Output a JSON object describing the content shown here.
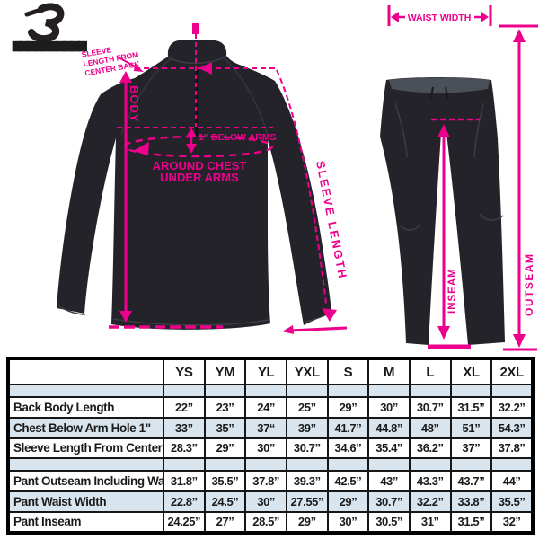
{
  "colors": {
    "accent": "#EC008C",
    "garment": "#24232A",
    "table_shaded": "#D8E5EE"
  },
  "logo": {
    "wordmark": "▆▆▆▆▆▆▆▆▆▆"
  },
  "diagram": {
    "jacket": {
      "note_line1": "SLEEVE",
      "note_line2": "LENGTH FROM",
      "note_line3": "CENTER BACK",
      "body_label": "BODY",
      "below_arms_label": "1” BELOW ARMS",
      "around_chest_line1": "AROUND CHEST",
      "around_chest_line2": "UNDER ARMS",
      "sleeve_label": "SLEEVE LENGTH"
    },
    "pants": {
      "waist_label": "WAIST WIDTH",
      "outseam_label": "OUTSEAM",
      "inseam_label": "INSEAM"
    }
  },
  "size_chart": {
    "columns": [
      "YS",
      "YM",
      "YL",
      "YXL",
      "S",
      "M",
      "L",
      "XL",
      "2XL"
    ],
    "rows": [
      {
        "label": "",
        "shaded": true,
        "values": [
          "",
          "",
          "",
          "",
          "",
          "",
          "",
          "",
          ""
        ]
      },
      {
        "label": "Back Body Length",
        "shaded": false,
        "values": [
          "22”",
          "23”",
          "24”",
          "25”",
          "29”",
          "30”",
          "30.7”",
          "31.5”",
          "32.2”"
        ]
      },
      {
        "label": "Chest Below Arm Hole 1\"",
        "shaded": true,
        "values": [
          "33”",
          "35”",
          "37“",
          "39”",
          "41.7”",
          "44.8”",
          "48”",
          "51”",
          "54.3”"
        ]
      },
      {
        "label": "Sleeve Length From Center Back",
        "shaded": false,
        "values": [
          "28.3”",
          "29”",
          "30”",
          "30.7”",
          "34.6”",
          "35.4”",
          "36.2”",
          "37”",
          "37.8”"
        ]
      },
      {
        "label": "",
        "shaded": true,
        "values": [
          "",
          "",
          "",
          "",
          "",
          "",
          "",
          "",
          ""
        ]
      },
      {
        "label": "Pant Outseam Including Waist",
        "shaded": false,
        "values": [
          "31.8”",
          "35.5”",
          "37.8”",
          "39.3”",
          "42.5”",
          "43”",
          "43.3”",
          "43.7”",
          "44”"
        ]
      },
      {
        "label": "Pant Waist Width",
        "shaded": true,
        "values": [
          "22.8”",
          "24.5”",
          "30”",
          "27.55”",
          "29”",
          "30.7”",
          "32.2”",
          "33.8”",
          "35.5”"
        ]
      },
      {
        "label": "Pant Inseam",
        "shaded": false,
        "values": [
          "24.25”",
          "27”",
          "28.5”",
          "29”",
          "30”",
          "30.5”",
          "31”",
          "31.5”",
          "32”"
        ]
      }
    ]
  }
}
